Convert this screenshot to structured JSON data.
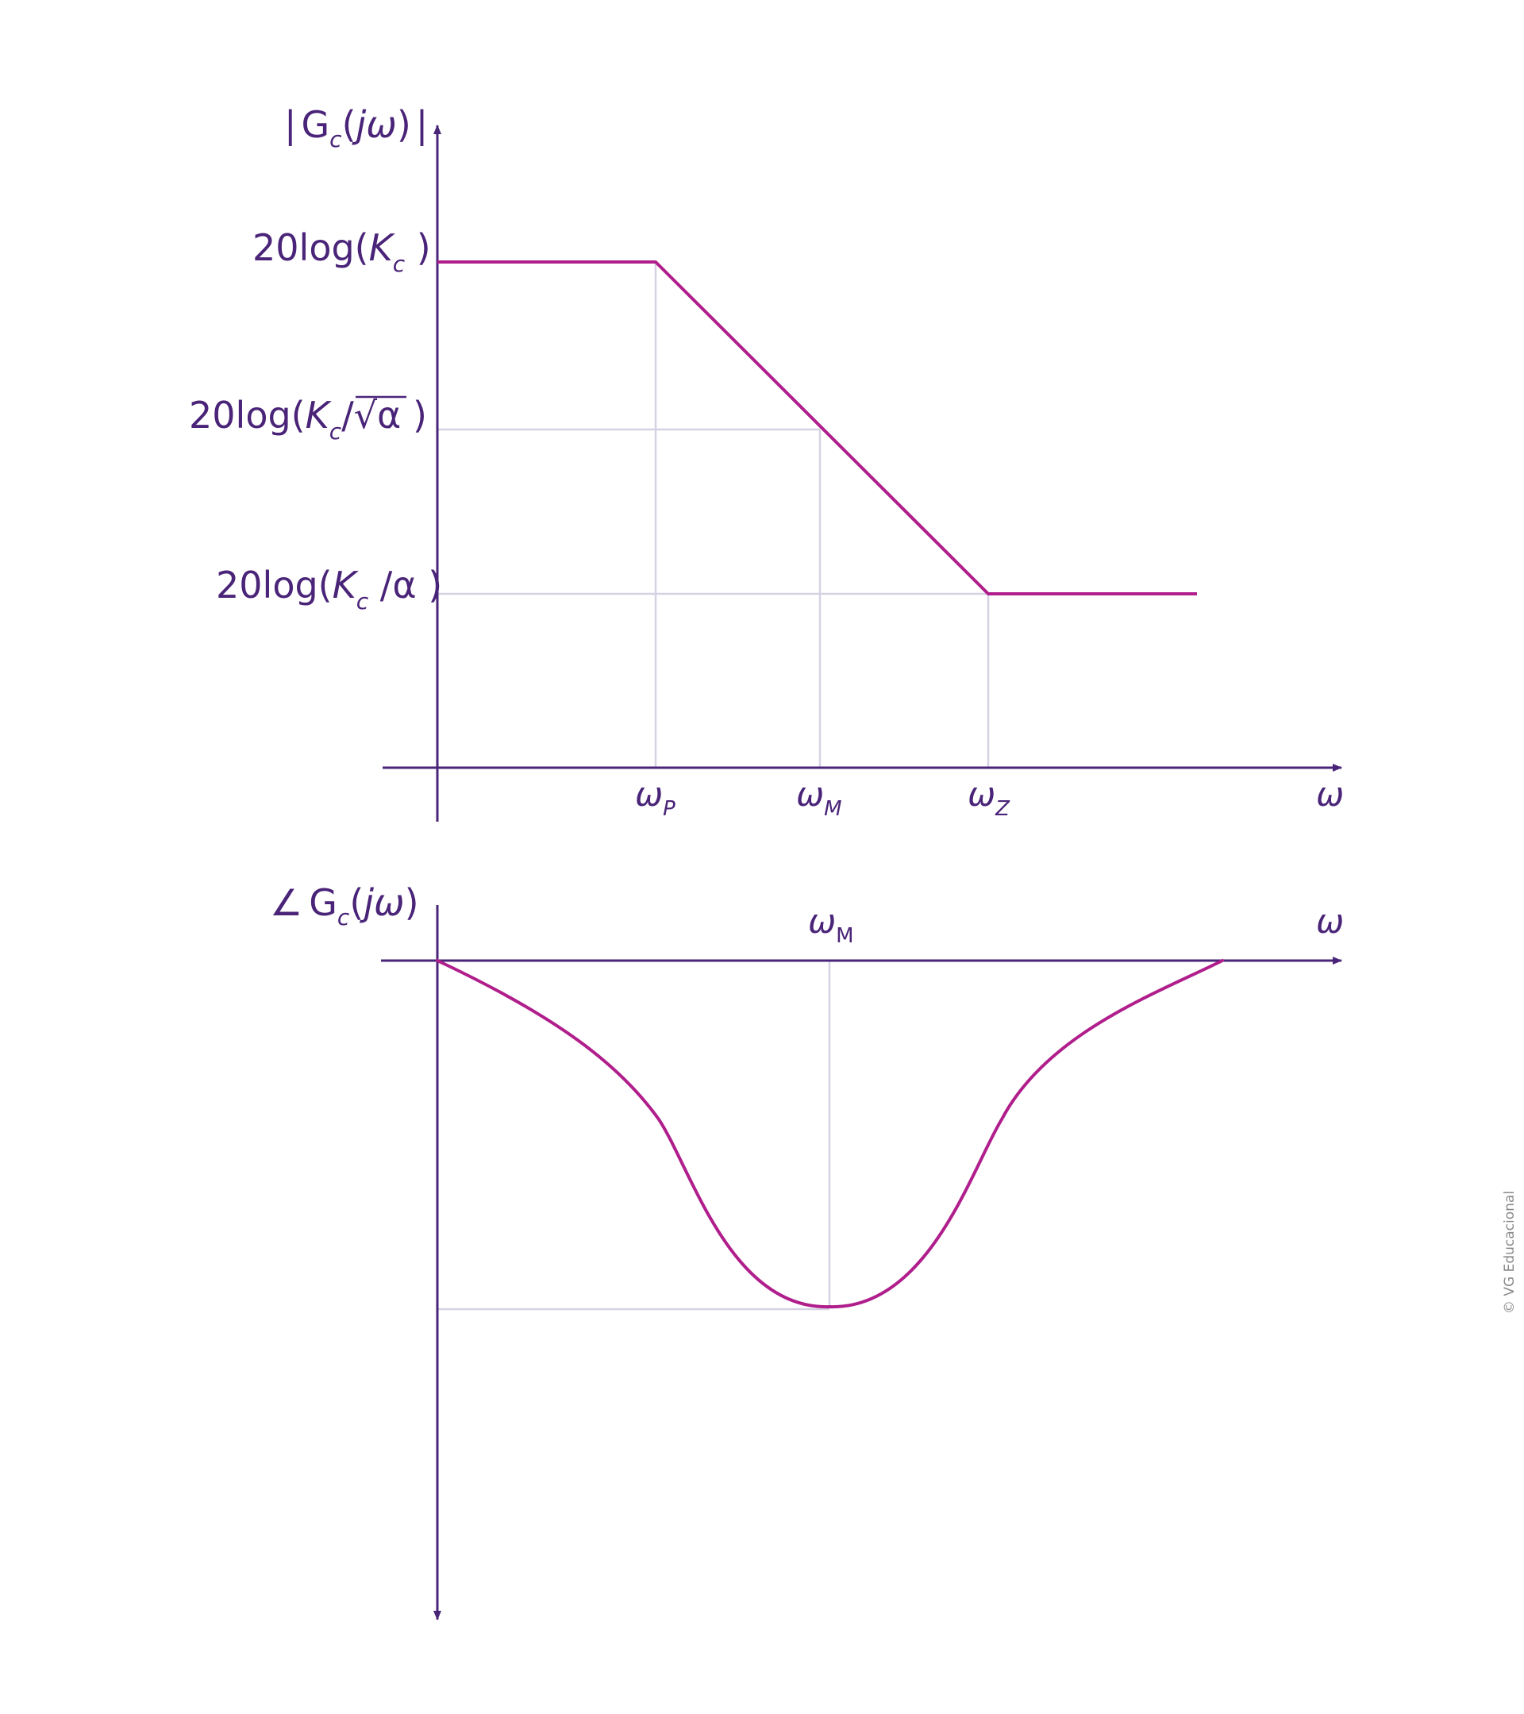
{
  "magnitude_plot": {
    "y_axis_label": {
      "bar_left": "|",
      "G": "G",
      "sub": "c",
      "open": "(",
      "j": "j",
      "omega": "ω",
      "close": ")",
      "bar_right": "|"
    },
    "level_high": {
      "prefix": "20log(",
      "K": "K",
      "sub": "c",
      "suffix": " )"
    },
    "level_mid": {
      "prefix": "20log(",
      "K": "K",
      "sub": "c",
      "op": "/",
      "sqrt": "√",
      "alpha": "α",
      "suffix": " )"
    },
    "level_low": {
      "prefix": "20log(",
      "K": "K",
      "sub": "c",
      "op": " /",
      "alpha": "α",
      "suffix": " )"
    },
    "x_ticks": [
      {
        "omega": "ω",
        "sub": "P"
      },
      {
        "omega": "ω",
        "sub": "M"
      },
      {
        "omega": "ω",
        "sub": "Z"
      }
    ],
    "x_axis_label": "ω"
  },
  "phase_plot": {
    "y_axis_label": {
      "angle": "∠",
      "G": "G",
      "sub": "c",
      "open": "(",
      "j": "j",
      "omega": "ω",
      "close": ")"
    },
    "max_marker": {
      "omega": "ω",
      "sub": "M"
    },
    "x_axis_label": "ω"
  },
  "credit": "© VG Educacional",
  "colors": {
    "axis": "#4a2478",
    "curve": "#b01e8c",
    "guide": "#d6d2e4",
    "label": "#4a2478"
  }
}
